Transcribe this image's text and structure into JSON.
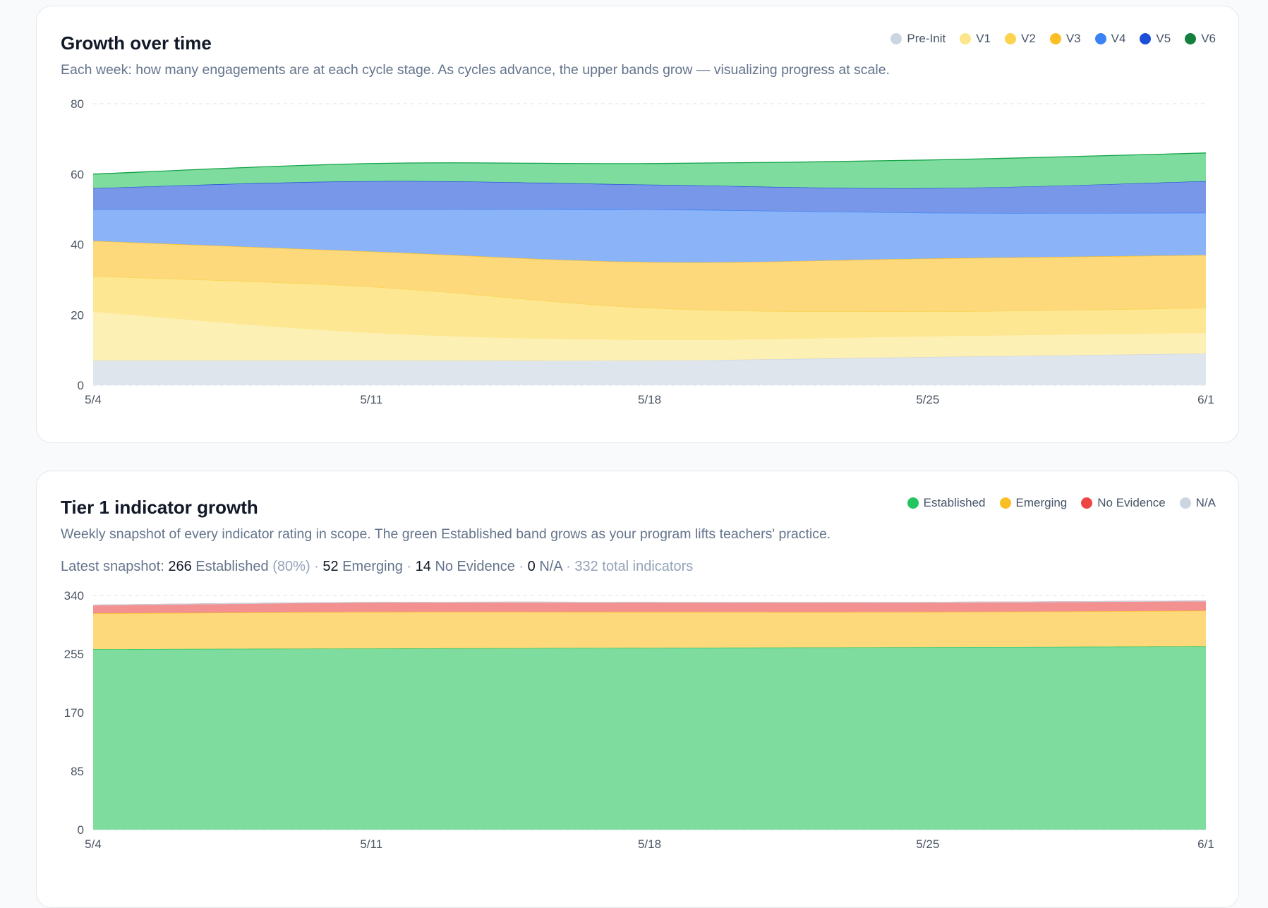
{
  "growth": {
    "title": "Growth over time",
    "subtitle": "Each week: how many engagements are at each cycle stage. As cycles advance, the upper bands grow — visualizing progress at scale.",
    "legend": [
      {
        "label": "Pre-Init",
        "color": "#cbd5e1"
      },
      {
        "label": "V1",
        "color": "#fde68a"
      },
      {
        "label": "V2",
        "color": "#fcd34d"
      },
      {
        "label": "V3",
        "color": "#fbbf24"
      },
      {
        "label": "V4",
        "color": "#3b82f6"
      },
      {
        "label": "V5",
        "color": "#1d4ed8"
      },
      {
        "label": "V6",
        "color": "#15803d"
      }
    ]
  },
  "tier1": {
    "title": "Tier 1 indicator growth",
    "subtitle": "Weekly snapshot of every indicator rating in scope. The green Established band grows as your program lifts teachers' practice.",
    "legend": [
      {
        "label": "Established",
        "color": "#22c55e"
      },
      {
        "label": "Emerging",
        "color": "#fbbf24"
      },
      {
        "label": "No Evidence",
        "color": "#ef4444"
      },
      {
        "label": "N/A",
        "color": "#cbd5e1"
      }
    ],
    "snapshot": {
      "prefix": "Latest snapshot:",
      "established_count": "266",
      "established_label": "Established",
      "established_pct": "(80%)",
      "sep": "·",
      "emerging_count": "52",
      "emerging_label": "Emerging",
      "noevidence_count": "14",
      "noevidence_label": "No Evidence",
      "na_count": "0",
      "na_label": "N/A",
      "total": "332 total indicators"
    }
  },
  "chart_data": [
    {
      "type": "area",
      "stacked": true,
      "title": "Growth over time",
      "x": [
        "5/4",
        "5/11",
        "5/18",
        "5/25",
        "6/1"
      ],
      "ylim": [
        0,
        80
      ],
      "yticks": [
        0,
        20,
        40,
        60,
        80
      ],
      "grid": true,
      "legend_position": "top-right",
      "series": [
        {
          "name": "Pre-Init",
          "fill": "#dfe5ed",
          "stroke": "#cbd5e1",
          "values": [
            7,
            7,
            7,
            8,
            9
          ]
        },
        {
          "name": "V1",
          "fill": "#fdf0b4",
          "stroke": "#fde68a",
          "values": [
            14,
            8,
            6,
            6,
            6
          ]
        },
        {
          "name": "V2",
          "fill": "#fde793",
          "stroke": "#fcd34d",
          "values": [
            10,
            13,
            9,
            7,
            7
          ]
        },
        {
          "name": "V3",
          "fill": "#fdd97c",
          "stroke": "#fbbf24",
          "values": [
            10,
            10,
            13,
            15,
            15
          ]
        },
        {
          "name": "V4",
          "fill": "#8ab3f8",
          "stroke": "#3b82f6",
          "values": [
            9,
            12,
            15,
            13,
            12
          ]
        },
        {
          "name": "V5",
          "fill": "#7897e8",
          "stroke": "#1d4ed8",
          "values": [
            6,
            8,
            7,
            7,
            9
          ]
        },
        {
          "name": "V6",
          "fill": "#7ddc9e",
          "stroke": "#16a34a",
          "values": [
            4,
            5,
            6,
            8,
            8
          ]
        }
      ]
    },
    {
      "type": "area",
      "stacked": true,
      "title": "Tier 1 indicator growth",
      "x": [
        "5/4",
        "5/11",
        "5/18",
        "5/25",
        "6/1"
      ],
      "ylim": [
        0,
        340
      ],
      "yticks": [
        0,
        85,
        170,
        255,
        340
      ],
      "grid": true,
      "legend_position": "top-right",
      "series": [
        {
          "name": "Established",
          "fill": "#7ddc9e",
          "stroke": "#22c55e",
          "values": [
            262,
            263,
            264,
            265,
            266
          ]
        },
        {
          "name": "Emerging",
          "fill": "#fdd97c",
          "stroke": "#fbbf24",
          "values": [
            52,
            53,
            52,
            51,
            52
          ]
        },
        {
          "name": "No Evidence",
          "fill": "#f39191",
          "stroke": "#ef4444",
          "values": [
            12,
            14,
            14,
            14,
            14
          ]
        },
        {
          "name": "N/A",
          "fill": "#dfe5ed",
          "stroke": "#cbd5e1",
          "values": [
            0,
            0,
            0,
            0,
            0
          ]
        }
      ]
    }
  ]
}
